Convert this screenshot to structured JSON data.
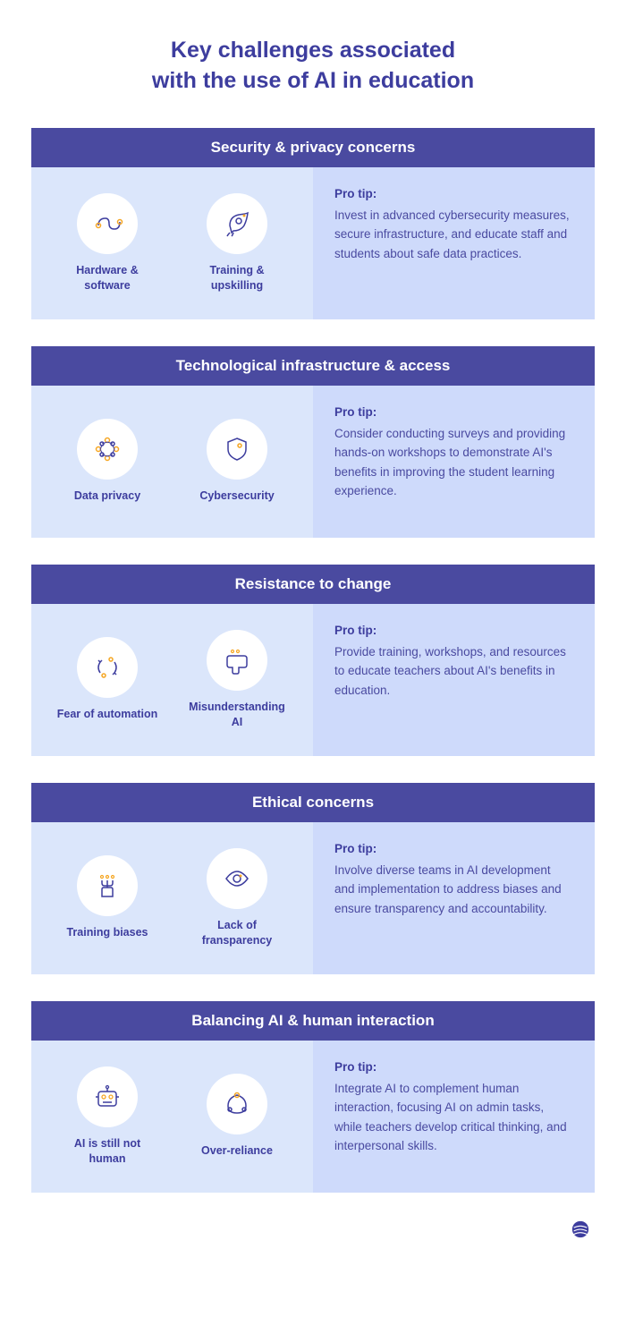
{
  "title_line1": "Key challenges associated",
  "title_line2": "with the use of AI in education",
  "tip_label": "Pro tip:",
  "colors": {
    "header_bg": "#4a4aa0",
    "header_text": "#ffffff",
    "icons_bg": "#dbe6fb",
    "tip_bg": "#cedafb",
    "title_color": "#3d3d9e",
    "text_color": "#4a4aa0",
    "icon_stroke": "#3d3d9e",
    "icon_accent": "#f5a623"
  },
  "sections": [
    {
      "header": "Security & privacy concerns",
      "icons": [
        {
          "name": "hardware-software",
          "label": "Hardware & software"
        },
        {
          "name": "training-upskilling",
          "label": "Training & upskilling"
        }
      ],
      "tip": "Invest in advanced cybersecurity measures, secure infrastructure, and educate staff and students about safe data practices."
    },
    {
      "header": "Technological infrastructure & access",
      "icons": [
        {
          "name": "data-privacy",
          "label": "Data privacy"
        },
        {
          "name": "cybersecurity",
          "label": "Cybersecurity"
        }
      ],
      "tip": "Consider conducting surveys and providing hands-on workshops to demonstrate AI's benefits in improving the student learning experience."
    },
    {
      "header": "Resistance to change",
      "icons": [
        {
          "name": "fear-automation",
          "label": "Fear of automation"
        },
        {
          "name": "misunderstanding-ai",
          "label": "Misunderstanding AI"
        }
      ],
      "tip": "Provide training, workshops, and resources to educate teachers about AI's benefits in education."
    },
    {
      "header": "Ethical concerns",
      "icons": [
        {
          "name": "training-biases",
          "label": "Training biases"
        },
        {
          "name": "lack-transparency",
          "label": "Lack of fransparency"
        }
      ],
      "tip": "Involve diverse teams in AI development and implementation to address biases and ensure transparency and accountability."
    },
    {
      "header": "Balancing AI & human interaction",
      "icons": [
        {
          "name": "ai-not-human",
          "label": "AI is still not human"
        },
        {
          "name": "over-reliance",
          "label": "Over-reliance"
        }
      ],
      "tip": "Integrate AI to complement human interaction, focusing AI on admin tasks, while teachers develop critical thinking, and interpersonal skills."
    }
  ]
}
